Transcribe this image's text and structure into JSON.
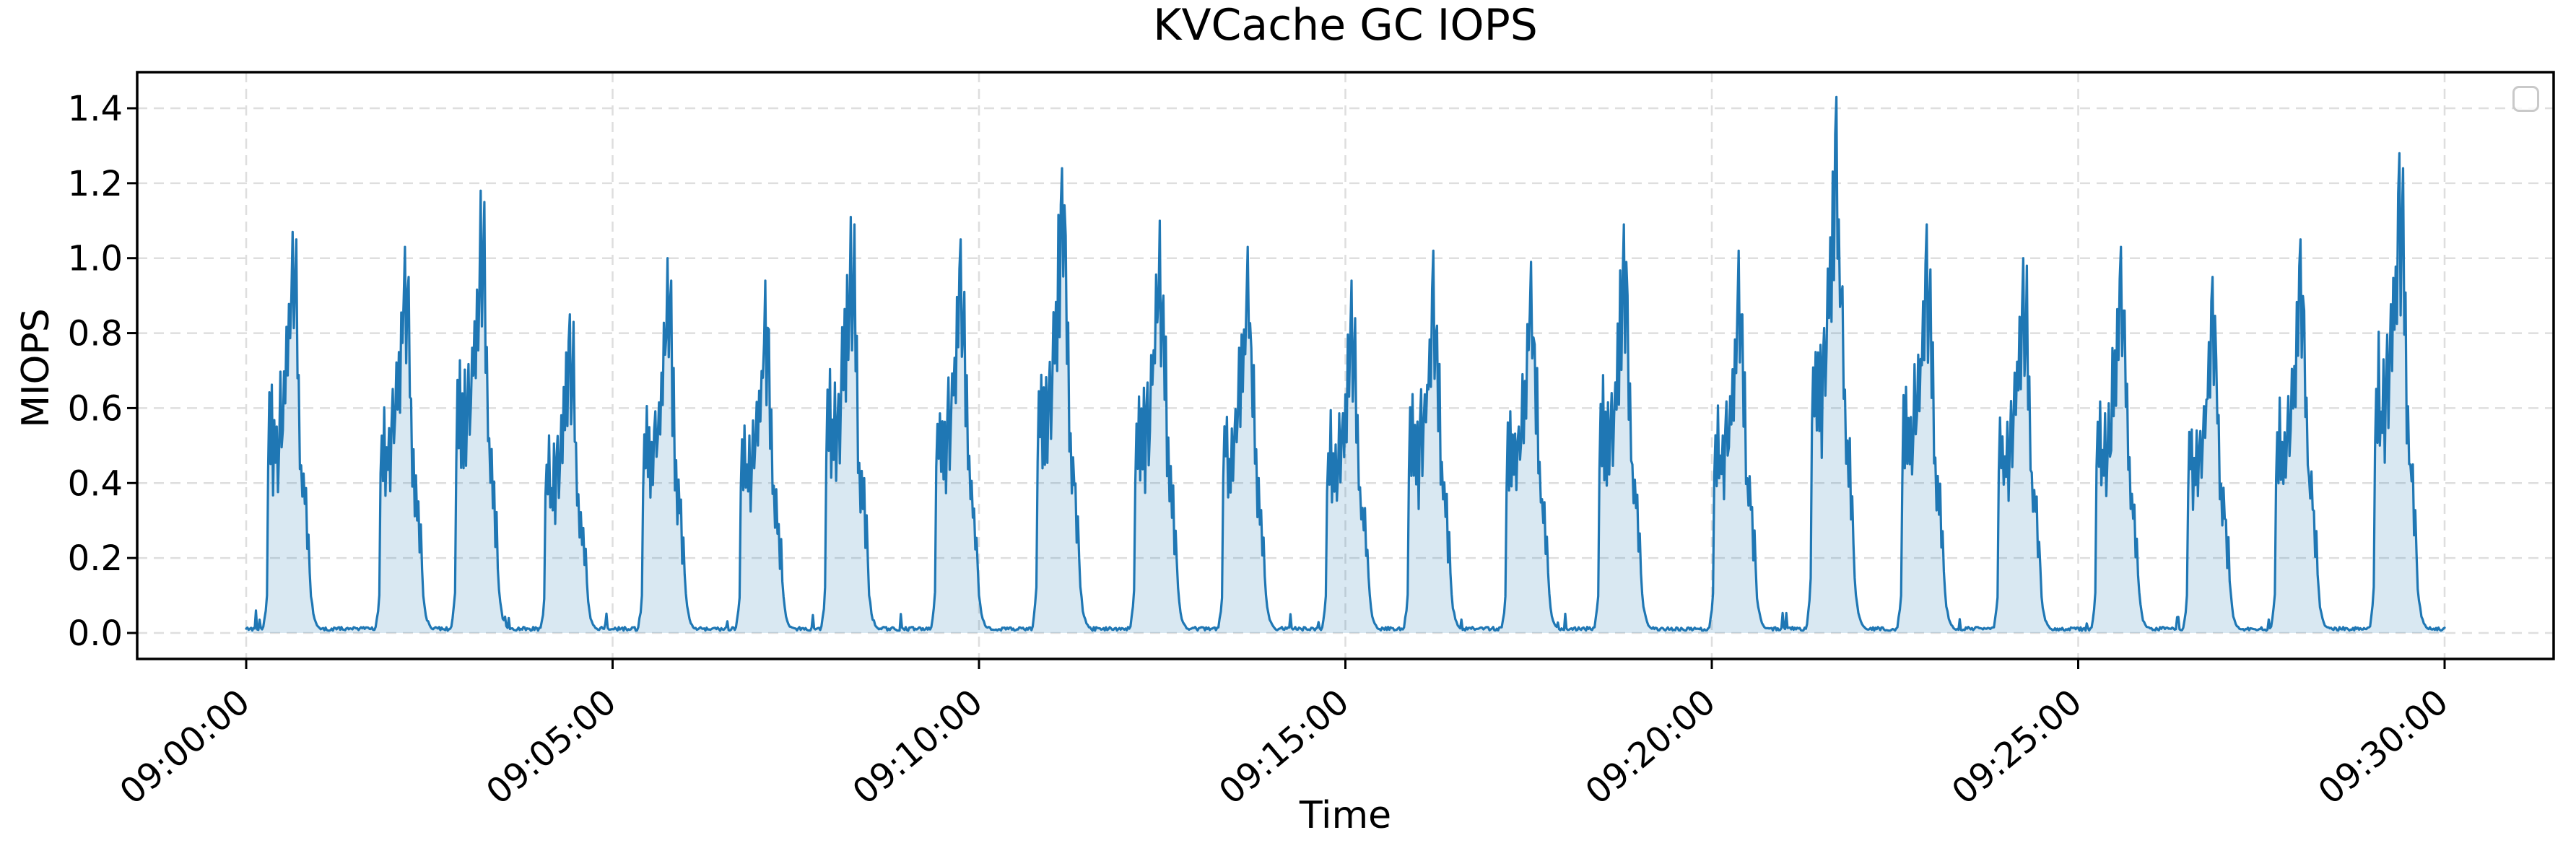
{
  "chart_data": {
    "type": "area",
    "title": "KVCache GC IOPS",
    "xlabel": "Time",
    "ylabel": "MIOPS",
    "x_start": "09:00:00",
    "x_end": "09:30:00",
    "duration_s": 1800,
    "x_tick_interval_s": 300,
    "x_tick_labels": [
      "09:00:00",
      "09:05:00",
      "09:10:00",
      "09:15:00",
      "09:20:00",
      "09:25:00",
      "09:30:00"
    ],
    "y_ticks": [
      0.0,
      0.2,
      0.4,
      0.6,
      0.8,
      1.0,
      1.2,
      1.4
    ],
    "y_tick_labels": [
      "0.0",
      "0.2",
      "0.4",
      "0.6",
      "0.8",
      "1.0",
      "1.2",
      "1.4"
    ],
    "ylim": [
      -0.07,
      1.5
    ],
    "xlim": [
      "08:58:30",
      "09:31:30"
    ],
    "grid": true,
    "grid_style": "dashed",
    "legend": {
      "visible": true,
      "position": "upper right",
      "entries": []
    },
    "line_color": "#1f77b4",
    "fill_opacity": 0.17,
    "grid_color": "#dedede",
    "baseline_value": 0.01,
    "y_max_observed": 1.43,
    "bursts": [
      {
        "time_s": 38,
        "peak": 1.07,
        "sub_peak": 1.05
      },
      {
        "time_s": 130,
        "peak": 1.03,
        "sub_peak": 0.95
      },
      {
        "time_s": 192,
        "peak": 1.18,
        "sub_peak": 1.15
      },
      {
        "time_s": 265,
        "peak": 0.85,
        "sub_peak": 0.83
      },
      {
        "time_s": 345,
        "peak": 1.0,
        "sub_peak": 0.94
      },
      {
        "time_s": 425,
        "peak": 0.94,
        "sub_peak": 0.81
      },
      {
        "time_s": 495,
        "peak": 1.11,
        "sub_peak": 1.09
      },
      {
        "time_s": 585,
        "peak": 1.05,
        "sub_peak": 0.91
      },
      {
        "time_s": 668,
        "peak": 1.24,
        "sub_peak": 1.06
      },
      {
        "time_s": 748,
        "peak": 1.1,
        "sub_peak": 0.9
      },
      {
        "time_s": 820,
        "peak": 1.03,
        "sub_peak": 0.76
      },
      {
        "time_s": 905,
        "peak": 0.94,
        "sub_peak": 0.84
      },
      {
        "time_s": 972,
        "peak": 1.02,
        "sub_peak": 0.82
      },
      {
        "time_s": 1052,
        "peak": 0.99,
        "sub_peak": 0.77
      },
      {
        "time_s": 1128,
        "peak": 1.09,
        "sub_peak": 0.9
      },
      {
        "time_s": 1222,
        "peak": 1.02,
        "sub_peak": 0.85
      },
      {
        "time_s": 1302,
        "peak": 1.43,
        "sub_peak": 0.87
      },
      {
        "time_s": 1376,
        "peak": 1.09,
        "sub_peak": 0.97
      },
      {
        "time_s": 1455,
        "peak": 1.0,
        "sub_peak": 0.98
      },
      {
        "time_s": 1535,
        "peak": 1.03,
        "sub_peak": 0.86
      },
      {
        "time_s": 1610,
        "peak": 0.95,
        "sub_peak": 0.73
      },
      {
        "time_s": 1682,
        "peak": 1.05,
        "sub_peak": 0.86
      },
      {
        "time_s": 1763,
        "peak": 1.28,
        "sub_peak": 1.24
      }
    ]
  }
}
